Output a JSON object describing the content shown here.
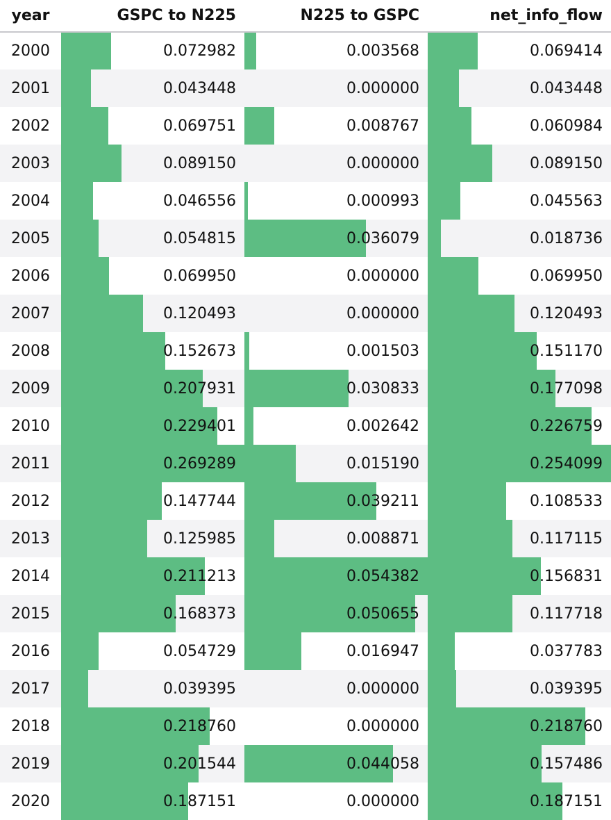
{
  "style": {
    "bar_color": "#5dbd83"
  },
  "columns": {
    "year": "year",
    "gspc_to_n225": "GSPC to N225",
    "n225_to_gspc": "N225 to GSPC",
    "net_info_flow": "net_info_flow"
  },
  "rows": [
    {
      "year": "2000",
      "gspc_to_n225": "0.072982",
      "n225_to_gspc": "0.003568",
      "net_info_flow": "0.069414"
    },
    {
      "year": "2001",
      "gspc_to_n225": "0.043448",
      "n225_to_gspc": "0.000000",
      "net_info_flow": "0.043448"
    },
    {
      "year": "2002",
      "gspc_to_n225": "0.069751",
      "n225_to_gspc": "0.008767",
      "net_info_flow": "0.060984"
    },
    {
      "year": "2003",
      "gspc_to_n225": "0.089150",
      "n225_to_gspc": "0.000000",
      "net_info_flow": "0.089150"
    },
    {
      "year": "2004",
      "gspc_to_n225": "0.046556",
      "n225_to_gspc": "0.000993",
      "net_info_flow": "0.045563"
    },
    {
      "year": "2005",
      "gspc_to_n225": "0.054815",
      "n225_to_gspc": "0.036079",
      "net_info_flow": "0.018736"
    },
    {
      "year": "2006",
      "gspc_to_n225": "0.069950",
      "n225_to_gspc": "0.000000",
      "net_info_flow": "0.069950"
    },
    {
      "year": "2007",
      "gspc_to_n225": "0.120493",
      "n225_to_gspc": "0.000000",
      "net_info_flow": "0.120493"
    },
    {
      "year": "2008",
      "gspc_to_n225": "0.152673",
      "n225_to_gspc": "0.001503",
      "net_info_flow": "0.151170"
    },
    {
      "year": "2009",
      "gspc_to_n225": "0.207931",
      "n225_to_gspc": "0.030833",
      "net_info_flow": "0.177098"
    },
    {
      "year": "2010",
      "gspc_to_n225": "0.229401",
      "n225_to_gspc": "0.002642",
      "net_info_flow": "0.226759"
    },
    {
      "year": "2011",
      "gspc_to_n225": "0.269289",
      "n225_to_gspc": "0.015190",
      "net_info_flow": "0.254099"
    },
    {
      "year": "2012",
      "gspc_to_n225": "0.147744",
      "n225_to_gspc": "0.039211",
      "net_info_flow": "0.108533"
    },
    {
      "year": "2013",
      "gspc_to_n225": "0.125985",
      "n225_to_gspc": "0.008871",
      "net_info_flow": "0.117115"
    },
    {
      "year": "2014",
      "gspc_to_n225": "0.211213",
      "n225_to_gspc": "0.054382",
      "net_info_flow": "0.156831"
    },
    {
      "year": "2015",
      "gspc_to_n225": "0.168373",
      "n225_to_gspc": "0.050655",
      "net_info_flow": "0.117718"
    },
    {
      "year": "2016",
      "gspc_to_n225": "0.054729",
      "n225_to_gspc": "0.016947",
      "net_info_flow": "0.037783"
    },
    {
      "year": "2017",
      "gspc_to_n225": "0.039395",
      "n225_to_gspc": "0.000000",
      "net_info_flow": "0.039395"
    },
    {
      "year": "2018",
      "gspc_to_n225": "0.218760",
      "n225_to_gspc": "0.000000",
      "net_info_flow": "0.218760"
    },
    {
      "year": "2019",
      "gspc_to_n225": "0.201544",
      "n225_to_gspc": "0.044058",
      "net_info_flow": "0.157486"
    },
    {
      "year": "2020",
      "gspc_to_n225": "0.187151",
      "n225_to_gspc": "0.000000",
      "net_info_flow": "0.187151"
    }
  ]
}
